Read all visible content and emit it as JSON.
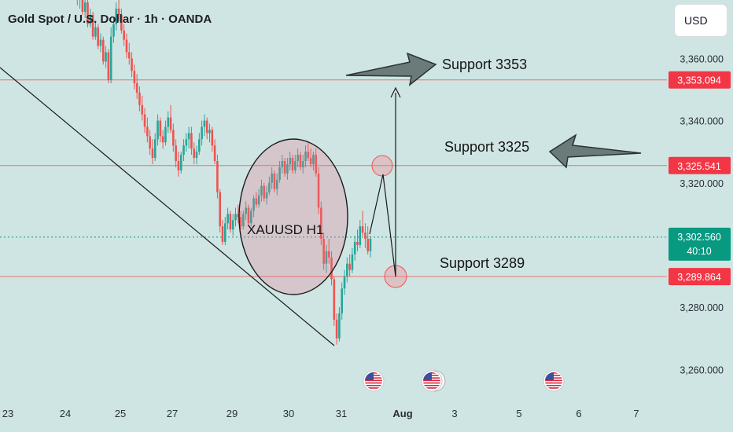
{
  "header": {
    "title": "Gold Spot / U.S. Dollar · 1h · OANDA",
    "currency": "USD"
  },
  "colors": {
    "up": "#26a69a",
    "down": "#ef5350",
    "line_red": "#e57373",
    "current": "#089981",
    "background": "#cfe5e3"
  },
  "chart_data": {
    "type": "candlestick",
    "symbol": "XAUUSD",
    "timeframe": "1h",
    "x_ticks": [
      "23",
      "24",
      "25",
      "27",
      "29",
      "30",
      "31",
      "Aug",
      "3",
      "5",
      "6",
      "7"
    ],
    "y_ticks": [
      "3,260.000",
      "3,280.000",
      "3,320.000",
      "3,340.000",
      "3,360.000"
    ],
    "ylim": [
      3253,
      3375
    ],
    "price_levels": [
      {
        "label": "3,353.094",
        "value": 3353.094,
        "color": "#f23645"
      },
      {
        "label": "3,325.541",
        "value": 3325.541,
        "color": "#f23645"
      },
      {
        "label": "3,302.560",
        "value": 3302.56,
        "color": "#089981",
        "countdown": "40:10"
      },
      {
        "label": "3,289.864",
        "value": 3289.864,
        "color": "#f23645"
      }
    ],
    "annotations": [
      {
        "text": "Support 3353",
        "price": 3360.0
      },
      {
        "text": "Support 3325",
        "price": 3335.0
      },
      {
        "text": "Support 3289",
        "price": 3292.0
      },
      {
        "text": "XAUUSD H1",
        "price": 3304.0
      }
    ],
    "candles": [
      [
        3384,
        3386,
        3381,
        3383
      ],
      [
        3383,
        3384,
        3377,
        3379
      ],
      [
        3379,
        3383,
        3376,
        3381
      ],
      [
        3381,
        3382,
        3374,
        3375
      ],
      [
        3375,
        3380,
        3373,
        3378
      ],
      [
        3378,
        3379,
        3370,
        3371
      ],
      [
        3371,
        3376,
        3370,
        3374
      ],
      [
        3374,
        3375,
        3366,
        3367
      ],
      [
        3367,
        3372,
        3366,
        3370
      ],
      [
        3370,
        3371,
        3363,
        3364
      ],
      [
        3364,
        3368,
        3362,
        3366
      ],
      [
        3366,
        3367,
        3358,
        3359
      ],
      [
        3359,
        3364,
        3357,
        3362
      ],
      [
        3362,
        3363,
        3352,
        3353
      ],
      [
        3353,
        3370,
        3352,
        3367
      ],
      [
        3367,
        3373,
        3365,
        3371
      ],
      [
        3371,
        3378,
        3369,
        3376
      ],
      [
        3376,
        3380,
        3372,
        3374
      ],
      [
        3374,
        3376,
        3368,
        3369
      ],
      [
        3369,
        3371,
        3364,
        3366
      ],
      [
        3366,
        3368,
        3360,
        3362
      ],
      [
        3362,
        3365,
        3358,
        3360
      ],
      [
        3360,
        3362,
        3354,
        3356
      ],
      [
        3356,
        3358,
        3350,
        3352
      ],
      [
        3352,
        3355,
        3347,
        3349
      ],
      [
        3349,
        3351,
        3343,
        3345
      ],
      [
        3345,
        3348,
        3340,
        3342
      ],
      [
        3342,
        3344,
        3336,
        3338
      ],
      [
        3338,
        3341,
        3333,
        3335
      ],
      [
        3335,
        3337,
        3329,
        3331
      ],
      [
        3331,
        3334,
        3326,
        3328
      ],
      [
        3328,
        3336,
        3327,
        3334
      ],
      [
        3334,
        3342,
        3332,
        3340
      ],
      [
        3340,
        3341,
        3333,
        3335
      ],
      [
        3335,
        3337,
        3331,
        3333
      ],
      [
        3333,
        3340,
        3332,
        3338
      ],
      [
        3338,
        3343,
        3336,
        3341
      ],
      [
        3341,
        3345,
        3336,
        3337
      ],
      [
        3337,
        3339,
        3330,
        3332
      ],
      [
        3332,
        3334,
        3325,
        3327
      ],
      [
        3327,
        3330,
        3322,
        3324
      ],
      [
        3324,
        3330,
        3323,
        3329
      ],
      [
        3329,
        3334,
        3327,
        3332
      ],
      [
        3332,
        3336,
        3330,
        3334
      ],
      [
        3334,
        3338,
        3331,
        3336
      ],
      [
        3336,
        3338,
        3329,
        3331
      ],
      [
        3331,
        3333,
        3326,
        3328
      ],
      [
        3328,
        3332,
        3326,
        3330
      ],
      [
        3330,
        3336,
        3329,
        3334
      ],
      [
        3334,
        3340,
        3332,
        3338
      ],
      [
        3338,
        3342,
        3335,
        3340
      ],
      [
        3340,
        3341,
        3334,
        3336
      ],
      [
        3336,
        3339,
        3333,
        3337
      ],
      [
        3337,
        3338,
        3330,
        3332
      ],
      [
        3332,
        3334,
        3326,
        3327
      ],
      [
        3327,
        3329,
        3315,
        3317
      ],
      [
        3317,
        3318,
        3304,
        3306
      ],
      [
        3306,
        3308,
        3300,
        3301
      ],
      [
        3301,
        3309,
        3300,
        3307
      ],
      [
        3307,
        3312,
        3305,
        3310
      ],
      [
        3310,
        3311,
        3304,
        3305
      ],
      [
        3305,
        3310,
        3303,
        3308
      ],
      [
        3308,
        3312,
        3306,
        3310
      ],
      [
        3310,
        3313,
        3307,
        3309
      ],
      [
        3309,
        3311,
        3305,
        3306
      ],
      [
        3306,
        3311,
        3305,
        3310
      ],
      [
        3310,
        3314,
        3308,
        3312
      ],
      [
        3312,
        3313,
        3306,
        3307
      ],
      [
        3307,
        3312,
        3306,
        3311
      ],
      [
        3311,
        3316,
        3309,
        3315
      ],
      [
        3315,
        3317,
        3312,
        3313
      ],
      [
        3313,
        3318,
        3312,
        3316
      ],
      [
        3316,
        3321,
        3314,
        3319
      ],
      [
        3319,
        3320,
        3314,
        3315
      ],
      [
        3315,
        3319,
        3313,
        3317
      ],
      [
        3317,
        3322,
        3316,
        3320
      ],
      [
        3320,
        3325,
        3318,
        3323
      ],
      [
        3323,
        3324,
        3317,
        3318
      ],
      [
        3318,
        3323,
        3316,
        3321
      ],
      [
        3321,
        3327,
        3320,
        3325
      ],
      [
        3325,
        3329,
        3323,
        3327
      ],
      [
        3327,
        3328,
        3322,
        3323
      ],
      [
        3323,
        3328,
        3321,
        3326
      ],
      [
        3326,
        3330,
        3324,
        3328
      ],
      [
        3328,
        3329,
        3323,
        3324
      ],
      [
        3324,
        3329,
        3323,
        3327
      ],
      [
        3327,
        3331,
        3325,
        3329
      ],
      [
        3329,
        3330,
        3324,
        3325
      ],
      [
        3325,
        3329,
        3323,
        3327
      ],
      [
        3327,
        3332,
        3325,
        3330
      ],
      [
        3330,
        3333,
        3327,
        3328
      ],
      [
        3328,
        3331,
        3325,
        3326
      ],
      [
        3326,
        3330,
        3324,
        3329
      ],
      [
        3329,
        3331,
        3322,
        3323
      ],
      [
        3323,
        3325,
        3310,
        3312
      ],
      [
        3312,
        3314,
        3300,
        3302
      ],
      [
        3302,
        3304,
        3292,
        3294
      ],
      [
        3294,
        3300,
        3291,
        3298
      ],
      [
        3298,
        3302,
        3294,
        3296
      ],
      [
        3296,
        3298,
        3287,
        3289
      ],
      [
        3289,
        3290,
        3274,
        3276
      ],
      [
        3276,
        3278,
        3268,
        3270
      ],
      [
        3270,
        3280,
        3269,
        3278
      ],
      [
        3278,
        3288,
        3276,
        3286
      ],
      [
        3286,
        3292,
        3284,
        3290
      ],
      [
        3290,
        3296,
        3288,
        3294
      ],
      [
        3294,
        3297,
        3290,
        3292
      ],
      [
        3292,
        3299,
        3291,
        3297
      ],
      [
        3297,
        3303,
        3295,
        3301
      ],
      [
        3301,
        3305,
        3298,
        3300
      ],
      [
        3300,
        3308,
        3299,
        3306
      ],
      [
        3306,
        3311,
        3303,
        3304
      ],
      [
        3304,
        3307,
        3299,
        3302
      ],
      [
        3302,
        3306,
        3297,
        3298
      ],
      [
        3298,
        3303,
        3296,
        3302
      ]
    ]
  }
}
